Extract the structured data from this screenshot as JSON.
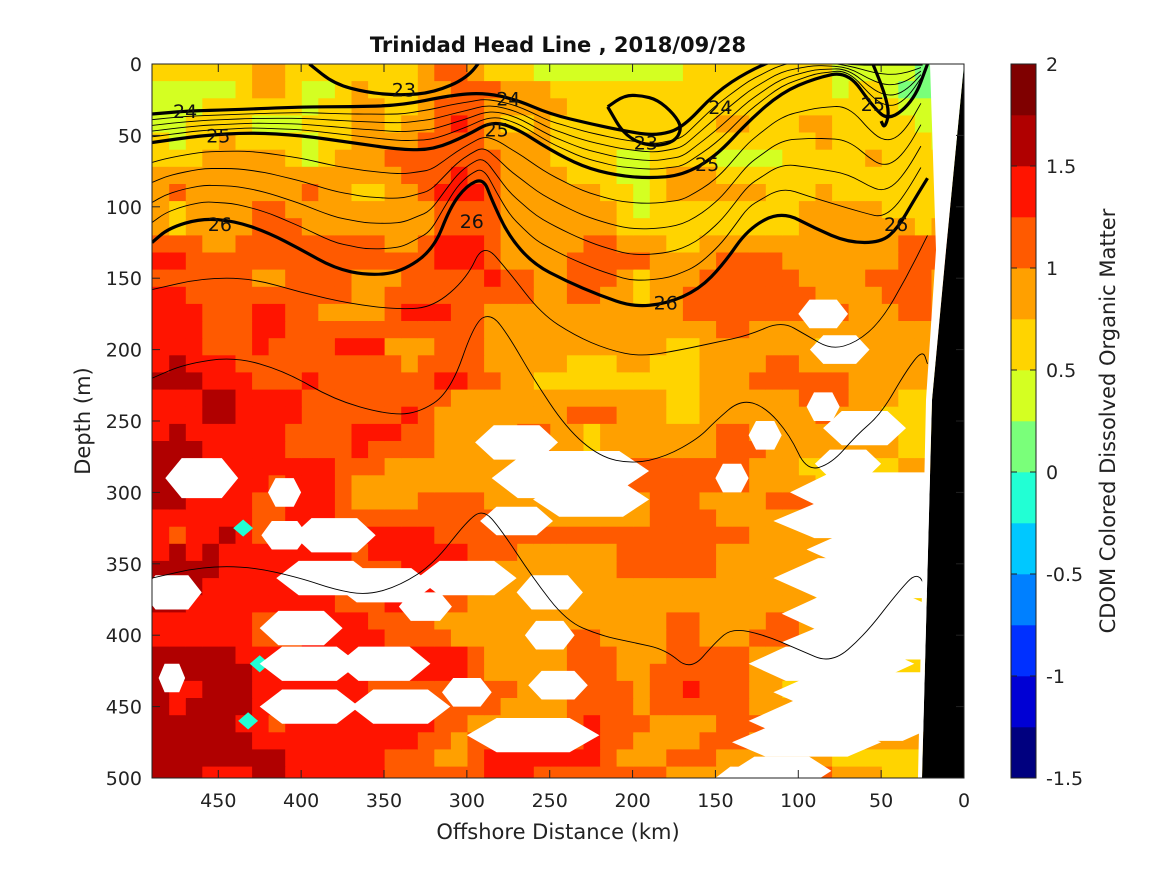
{
  "chart_data": {
    "type": "heatmap",
    "title": "Trinidad Head Line , 2018/09/28",
    "xlabel": "Offshore Distance (km)",
    "ylabel": "Depth (m)",
    "xlim": [
      490,
      0
    ],
    "ylim": [
      0,
      500
    ],
    "x_ticks": [
      450,
      400,
      350,
      300,
      250,
      200,
      150,
      100,
      50,
      0
    ],
    "y_ticks": [
      0,
      50,
      100,
      150,
      200,
      250,
      300,
      350,
      400,
      450,
      500
    ],
    "colorbar": {
      "label": "CDOM Colored Dissolved Organic Matter",
      "ticks": [
        "2",
        "1.5",
        "1",
        "0.5",
        "0",
        "-0.5",
        "-1",
        "-1.5"
      ],
      "range": [
        -1.5,
        2
      ],
      "step": 0.25,
      "colors": [
        "#00007f",
        "#0000d4",
        "#0030ff",
        "#0080ff",
        "#00c8ff",
        "#22ffd4",
        "#7aff7a",
        "#d4ff22",
        "#ffd400",
        "#ffa000",
        "#ff5a00",
        "#ff1400",
        "#b00000",
        "#7f0000"
      ]
    },
    "sigma_contours": {
      "labeled_levels": [
        "23",
        "24",
        "25",
        "26"
      ],
      "thick_lines": [
        {
          "level": 24,
          "x": [
            490,
            470,
            440,
            400,
            370,
            340,
            310,
            290,
            270,
            250,
            225,
            200,
            185,
            170,
            150,
            130,
            110,
            90,
            70,
            50,
            35,
            25
          ],
          "y": [
            35,
            33,
            32,
            30,
            30,
            29,
            22,
            20,
            25,
            35,
            42,
            48,
            50,
            45,
            20,
            5,
            -5,
            -5,
            0,
            0,
            0,
            0
          ]
        },
        {
          "level": 25,
          "x": [
            490,
            460,
            430,
            400,
            370,
            340,
            320,
            300,
            285,
            270,
            250,
            230,
            210,
            190,
            170,
            150,
            130,
            110,
            90,
            70,
            55,
            45,
            30,
            22
          ],
          "y": [
            55,
            50,
            48,
            50,
            55,
            60,
            60,
            50,
            40,
            45,
            60,
            72,
            78,
            80,
            78,
            65,
            40,
            20,
            10,
            5,
            30,
            40,
            25,
            0
          ]
        },
        {
          "level": 26,
          "x": [
            490,
            480,
            460,
            440,
            420,
            400,
            380,
            360,
            340,
            320,
            310,
            300,
            290,
            285,
            275,
            260,
            240,
            220,
            200,
            180,
            160,
            145,
            130,
            110,
            90,
            70,
            50,
            40,
            30,
            22
          ],
          "y": [
            125,
            115,
            108,
            110,
            118,
            130,
            143,
            148,
            146,
            130,
            100,
            85,
            80,
            95,
            120,
            140,
            152,
            162,
            170,
            168,
            158,
            140,
            115,
            103,
            115,
            125,
            125,
            115,
            95,
            80
          ]
        },
        {
          "level": 23,
          "x": [
            290,
            300,
            320,
            340,
            360,
            380,
            395
          ],
          "y": [
            -5,
            10,
            20,
            22,
            20,
            14,
            0
          ]
        },
        {
          "level": 23,
          "x": [
            215,
            205,
            195,
            185,
            175,
            170,
            175,
            190,
            205,
            215
          ],
          "y": [
            30,
            22,
            22,
            25,
            35,
            45,
            55,
            58,
            50,
            30
          ]
        },
        {
          "level": 25,
          "x": [
            55,
            48,
            45,
            48,
            50
          ],
          "y": [
            0,
            20,
            35,
            45,
            40
          ]
        }
      ],
      "contour_labels": [
        {
          "text": "23",
          "x": 338,
          "y": 18
        },
        {
          "text": "24",
          "x": 470,
          "y": 33
        },
        {
          "text": "24",
          "x": 275,
          "y": 24
        },
        {
          "text": "24",
          "x": 147,
          "y": 30
        },
        {
          "text": "25",
          "x": 450,
          "y": 50
        },
        {
          "text": "25",
          "x": 282,
          "y": 46
        },
        {
          "text": "25",
          "x": 155,
          "y": 70
        },
        {
          "text": "23",
          "x": 192,
          "y": 55
        },
        {
          "text": "25",
          "x": 55,
          "y": 28
        },
        {
          "text": "26",
          "x": 449,
          "y": 112
        },
        {
          "text": "26",
          "x": 297,
          "y": 110
        },
        {
          "text": "26",
          "x": 180,
          "y": 167
        },
        {
          "text": "26",
          "x": 41,
          "y": 112
        }
      ]
    }
  }
}
